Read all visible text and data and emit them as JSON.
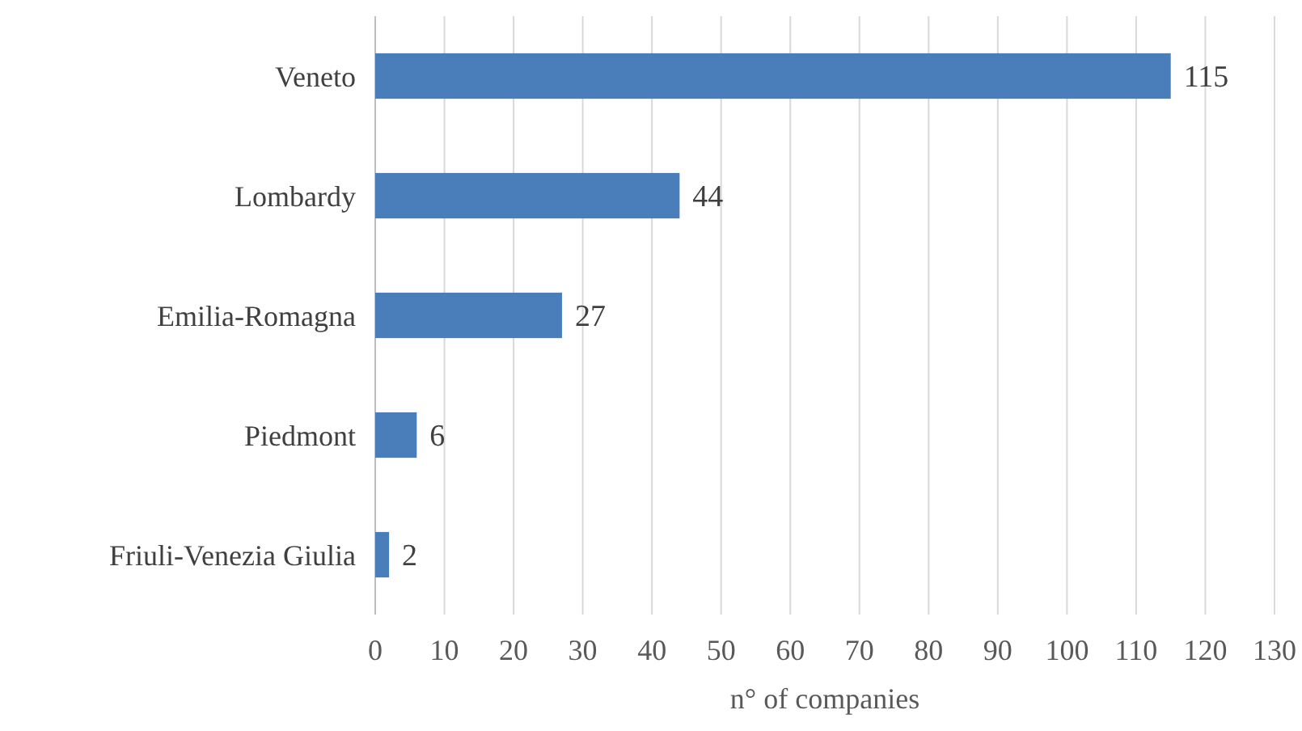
{
  "chart_data": {
    "type": "bar",
    "orientation": "horizontal",
    "xlabel": "n° of companies",
    "categories": [
      "Veneto",
      "Lombardy",
      "Emilia-Romagna",
      "Piedmont",
      "Friuli-Venezia Giulia"
    ],
    "values": [
      115,
      44,
      27,
      6,
      2
    ],
    "color": "#4a7ebb",
    "xlim": [
      0,
      130
    ],
    "xticks": [
      0,
      10,
      20,
      30,
      40,
      50,
      60,
      70,
      80,
      90,
      100,
      110,
      120,
      130
    ],
    "grid": "x",
    "data_labels": true
  }
}
